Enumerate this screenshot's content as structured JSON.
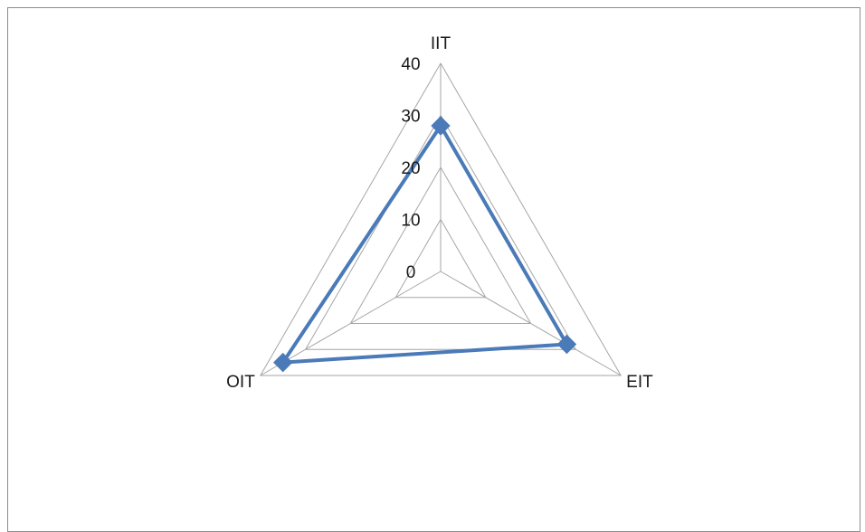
{
  "chart_data": {
    "type": "radar",
    "title": "",
    "categories": [
      "IIT",
      "EIT",
      "OIT"
    ],
    "series": [
      {
        "values": [
          28,
          28,
          35
        ]
      }
    ],
    "rlim": [
      0,
      40
    ],
    "ticks": [
      "0",
      "10",
      "20",
      "30",
      "40"
    ],
    "grid": true,
    "legend": "none",
    "colors": {
      "series": "#4a7ab8",
      "grid": "#a6a6a6"
    }
  }
}
